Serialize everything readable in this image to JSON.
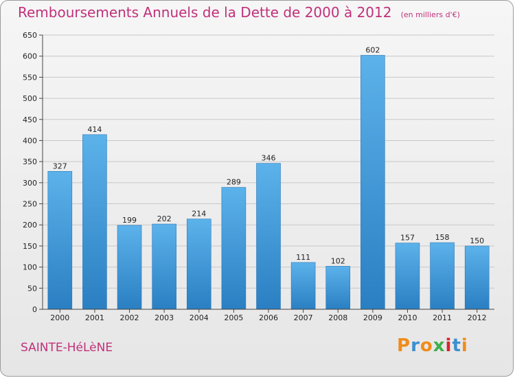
{
  "chart_data": {
    "type": "bar",
    "title": "Remboursements Annuels de la Dette de 2000 à 2012",
    "subtitle": "(en milliers d'€)",
    "categories": [
      "2000",
      "2001",
      "2002",
      "2003",
      "2004",
      "2005",
      "2006",
      "2007",
      "2008",
      "2009",
      "2010",
      "2011",
      "2012"
    ],
    "values": [
      327,
      414,
      199,
      202,
      214,
      289,
      346,
      111,
      102,
      602,
      157,
      158,
      150
    ],
    "ylim": [
      0,
      650
    ],
    "yticks": [
      "0",
      "50",
      "100",
      "150",
      "200",
      "250",
      "300",
      "350",
      "400",
      "450",
      "500",
      "550",
      "600",
      "650"
    ],
    "grid": true,
    "bar_color": "#4aa0dc"
  },
  "footer": {
    "city": "SAINTE-HéLèNE",
    "logo": "Proxiti"
  },
  "colors": {
    "title": "#c0307a",
    "logo_letters": [
      "#f08c1a",
      "#3c8fd0",
      "#f08c1a",
      "#3cb04a",
      "#d8242c",
      "#3c8fd0",
      "#f08c1a"
    ]
  }
}
